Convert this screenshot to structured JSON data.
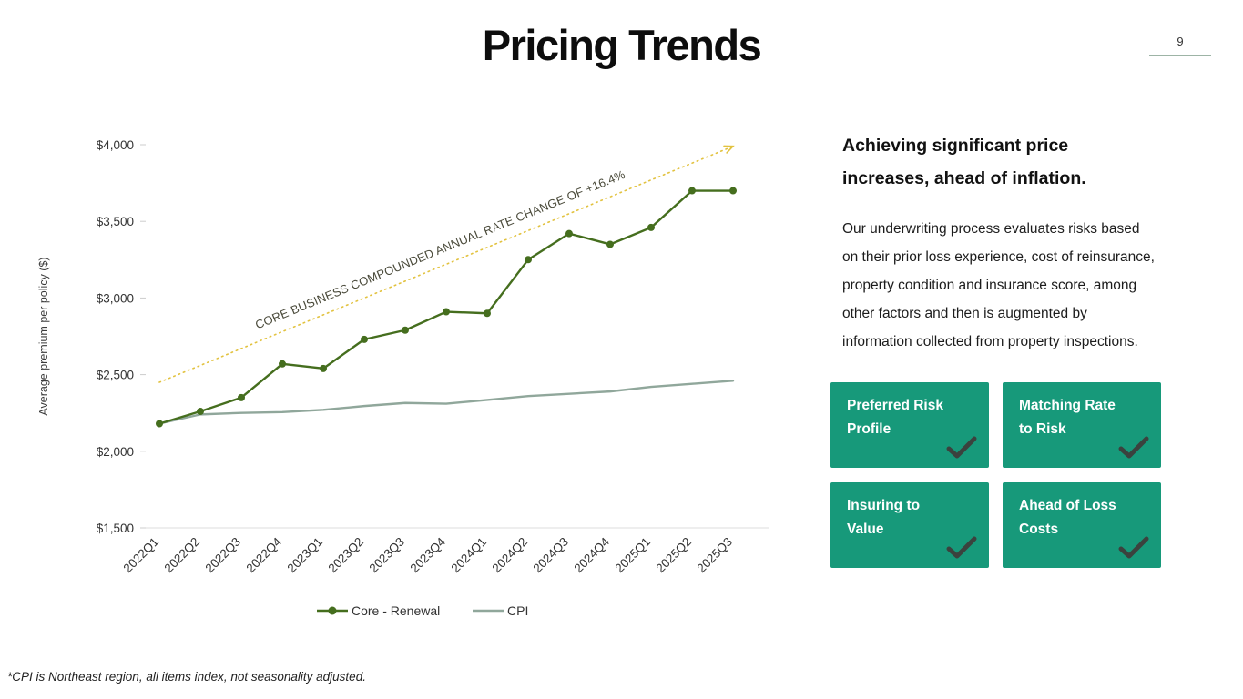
{
  "page": {
    "title": "Pricing Trends",
    "page_number": "9",
    "footnote": "*CPI is Northeast region, all items index, not seasonality adjusted.",
    "accent_underline_color": "#9db4a6"
  },
  "right_panel": {
    "heading": "Achieving significant price increases, ahead of inflation.",
    "body": "Our underwriting process evaluates risks based on their prior loss experience, cost of reinsurance, property condition and insurance score, among other factors and then is augmented by information collected from property inspections.",
    "box_color": "#17997A",
    "check_color": "#3B423E",
    "boxes": [
      {
        "label": "Preferred Risk Profile",
        "lines": [
          "Preferred Risk",
          "Profile"
        ]
      },
      {
        "label": "Matching Rate to Risk",
        "lines": [
          "Matching Rate",
          "to Risk"
        ]
      },
      {
        "label": "Insuring to Value",
        "lines": [
          "Insuring to",
          "Value"
        ]
      },
      {
        "label": "Ahead of Loss Costs",
        "lines": [
          "Ahead of Loss",
          "Costs"
        ]
      }
    ]
  },
  "chart_data": {
    "type": "line",
    "title": "",
    "xlabel": "",
    "ylabel": "Average premium per policy ($)",
    "ylim": [
      1500,
      4000
    ],
    "grid": false,
    "legend_position": "bottom",
    "yticks": [
      {
        "value": 1500,
        "label": "$1,500"
      },
      {
        "value": 2000,
        "label": "$2,000"
      },
      {
        "value": 2500,
        "label": "$2,500"
      },
      {
        "value": 3000,
        "label": "$3,000"
      },
      {
        "value": 3500,
        "label": "$3,500"
      },
      {
        "value": 4000,
        "label": "$4,000"
      }
    ],
    "categories": [
      "2022Q1",
      "2022Q2",
      "2022Q3",
      "2022Q4",
      "2023Q1",
      "2023Q2",
      "2023Q3",
      "2023Q4",
      "2024Q1",
      "2024Q2",
      "2024Q3",
      "2024Q4",
      "2025Q1",
      "2025Q2",
      "2025Q3"
    ],
    "series": [
      {
        "name": "Core - Renewal",
        "color": "#456E1E",
        "marker": true,
        "values": [
          2180,
          2260,
          2350,
          2570,
          2540,
          2730,
          2790,
          2910,
          2900,
          3250,
          3420,
          3350,
          3460,
          3700,
          3700
        ]
      },
      {
        "name": "CPI",
        "color": "#90A79B",
        "marker": false,
        "values": [
          2180,
          2240,
          2250,
          2255,
          2270,
          2295,
          2315,
          2310,
          2335,
          2360,
          2375,
          2390,
          2420,
          2440,
          2460
        ]
      }
    ],
    "annotation": {
      "text": "CORE BUSINESS COMPOUNDED ANNUAL RATE CHANGE OF +16.4%",
      "color": "#E2C23F",
      "text_color": "#4A4A3A",
      "from_index": 0,
      "from_value": 2450,
      "to_index": 14,
      "to_value": 3990
    }
  }
}
